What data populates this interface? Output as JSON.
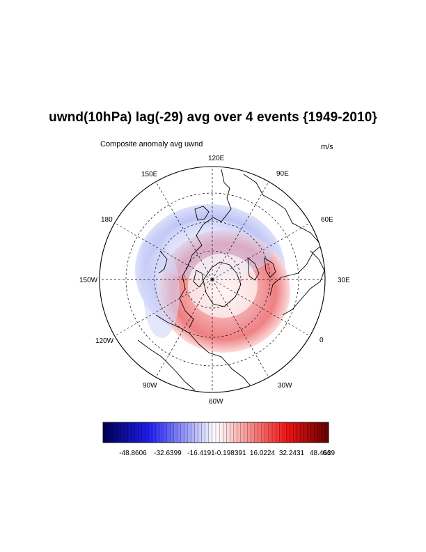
{
  "title": "uwnd(10hPa) lag(-29) avg over 4 events {1949-2010}",
  "subtitle_left": "Composite anomaly avg uwnd",
  "subtitle_right": "m/s",
  "map": {
    "projection": "polar-stereographic-north",
    "longitude_labels": {
      "lon_120E": "120E",
      "lon_90E": "90E",
      "lon_60E": "60E",
      "lon_30E": "30E",
      "lon_0": "0",
      "lon_30W": "30W",
      "lon_60W": "60W",
      "lon_90W": "90W",
      "lon_120W": "120W",
      "lon_150W": "150W",
      "lon_180": "180",
      "lon_150E": "150E"
    }
  },
  "colorbar": {
    "label_values": [
      "-48.8606",
      "-32.6399",
      "-16.4191",
      "-0.198391",
      "16.0224",
      "32.2431",
      "48.4639",
      "64"
    ],
    "min_color": "#00005a",
    "mid_color": "#ffffff",
    "max_color": "#6a0000"
  },
  "colors": {
    "negative": "#5a66e8",
    "positive": "#e8343a"
  }
}
